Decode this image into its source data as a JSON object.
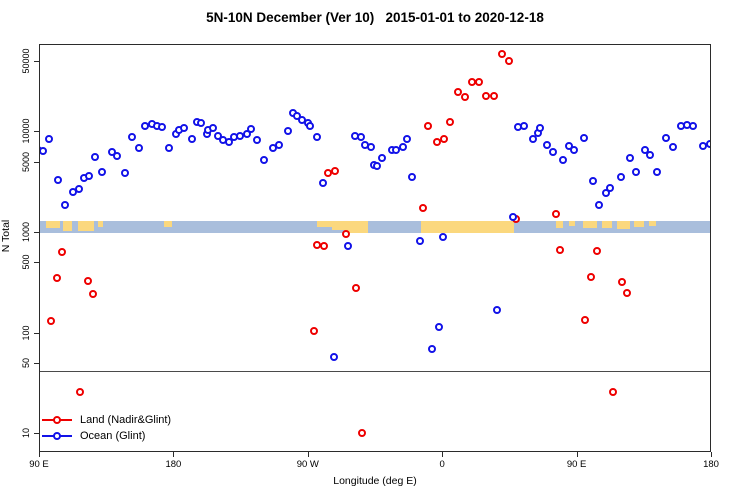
{
  "header": {
    "title": "5N-10N December (Ver 10)   2015-01-01 to 2020-12-18"
  },
  "axes": {
    "x": {
      "label": "Longitude (deg E)",
      "ticks": [
        {
          "coord": 90,
          "label": "90 E"
        },
        {
          "coord": 180,
          "label": "180"
        },
        {
          "coord": 270,
          "label": "90 W"
        },
        {
          "coord": 360,
          "label": "0"
        },
        {
          "coord": 450,
          "label": "90 E"
        },
        {
          "coord": 540,
          "label": "180"
        }
      ],
      "range_note": "axis spans 450 deg, longitudes wrap from 90E eastward to 180 twice"
    },
    "y": {
      "label": "N Total",
      "scale": "log10",
      "ticks": [
        "50000",
        "10000",
        "5000",
        "1000",
        "500",
        "100",
        "50",
        "10"
      ],
      "tick_values": [
        50000,
        10000,
        5000,
        1000,
        500,
        100,
        50,
        10
      ]
    }
  },
  "legend": {
    "items": [
      {
        "label": "Land (Nadir&Glint)",
        "color": "#EE0000"
      },
      {
        "label": "Ocean (Glint)",
        "color": "#1212E8"
      }
    ]
  },
  "map_strip": {
    "description": "land/ocean geography band drawn across plot near N=1000",
    "ocean_color": "#A9BEDC",
    "land_color": "#FBD87E",
    "n_range": [
      975,
      1290
    ],
    "land_patches": [
      {
        "from": 95,
        "to": 104,
        "h": 0.55
      },
      {
        "from": 106,
        "to": 112,
        "h": 0.8
      },
      {
        "from": 116,
        "to": 127,
        "h": 0.85
      },
      {
        "from": 129.5,
        "to": 133,
        "h": 0.5
      },
      {
        "from": 174,
        "to": 179,
        "h": 0.5
      },
      {
        "from": 276,
        "to": 286,
        "h": 0.5
      },
      {
        "from": 286,
        "to": 295,
        "h": 0.75
      },
      {
        "from": 295,
        "to": 310,
        "h": 1
      },
      {
        "from": 346,
        "to": 408,
        "h": 1
      },
      {
        "from": 436,
        "to": 441,
        "h": 0.6
      },
      {
        "from": 445,
        "to": 449,
        "h": 0.45
      },
      {
        "from": 454.5,
        "to": 464,
        "h": 0.6
      },
      {
        "from": 467,
        "to": 473.5,
        "h": 0.55
      },
      {
        "from": 477,
        "to": 485.5,
        "h": 0.65
      },
      {
        "from": 488.5,
        "to": 495,
        "h": 0.5
      },
      {
        "from": 498.5,
        "to": 503,
        "h": 0.4
      }
    ]
  },
  "threshold_line": {
    "n_value": 42
  },
  "chart_data": {
    "type": "scatter",
    "title": "5N-10N December (Ver 10)   2015-01-01 to 2020-12-18",
    "xlabel": "Longitude (deg E)",
    "ylabel": "N Total",
    "x_units": "degrees east, wrapped axis coordinate 90..540",
    "xlim": [
      90,
      540
    ],
    "ylim": [
      6.55,
      73500
    ],
    "y_scale": "log",
    "grid": false,
    "legend_position": "bottom-left",
    "marker": "open-circle",
    "series": [
      {
        "name": "Land (Nadir&Glint)",
        "color": "#EE0000",
        "points": [
          [
            97.8,
            132
          ],
          [
            102.2,
            352
          ],
          [
            105.1,
            640
          ],
          [
            117.3,
            26
          ],
          [
            122.9,
            326
          ],
          [
            126.2,
            242
          ],
          [
            274,
            104
          ],
          [
            276.2,
            750
          ],
          [
            280.7,
            730
          ],
          [
            283.5,
            3880
          ],
          [
            288.4,
            3990
          ],
          [
            295.8,
            950
          ],
          [
            302.2,
            276
          ],
          [
            306.2,
            10
          ],
          [
            346.9,
            1740
          ],
          [
            350.7,
            11300
          ],
          [
            356.7,
            7890
          ],
          [
            361.3,
            8380
          ],
          [
            365.1,
            12500
          ],
          [
            370.7,
            24700
          ],
          [
            375.1,
            22100
          ],
          [
            380.2,
            31100
          ],
          [
            384.7,
            31100
          ],
          [
            389.5,
            22600
          ],
          [
            394.7,
            22600
          ],
          [
            400.2,
            58200
          ],
          [
            404.5,
            50300
          ],
          [
            409.5,
            1340
          ],
          [
            436,
            1520
          ],
          [
            439.1,
            657
          ],
          [
            455.5,
            135
          ],
          [
            459.5,
            355
          ],
          [
            463.4,
            650
          ],
          [
            474.7,
            26
          ],
          [
            480.7,
            321
          ],
          [
            483.5,
            250
          ]
        ]
      },
      {
        "name": "Ocean (Glint)",
        "color": "#1212E8",
        "points": [
          [
            89,
            6500
          ],
          [
            93,
            6400
          ],
          [
            97,
            8400
          ],
          [
            103,
            3300
          ],
          [
            107.5,
            1860
          ],
          [
            113,
            2520
          ],
          [
            117,
            2700
          ],
          [
            120,
            3400
          ],
          [
            123.5,
            3630
          ],
          [
            127.3,
            5520
          ],
          [
            132,
            3970
          ],
          [
            139,
            6290
          ],
          [
            142.5,
            5730
          ],
          [
            147.3,
            3830
          ],
          [
            152.5,
            8740
          ],
          [
            157,
            6810
          ],
          [
            160.7,
            11300
          ],
          [
            165.5,
            11900
          ],
          [
            169.3,
            11300
          ],
          [
            172.2,
            11100
          ],
          [
            177,
            6900
          ],
          [
            181.5,
            9300
          ],
          [
            183.6,
            10300
          ],
          [
            187.3,
            10700
          ],
          [
            192.2,
            8400
          ],
          [
            195.8,
            12500
          ],
          [
            198.5,
            12200
          ],
          [
            202.2,
            9300
          ],
          [
            203,
            10300
          ],
          [
            206.7,
            10700
          ],
          [
            210.2,
            9000
          ],
          [
            213.3,
            8200
          ],
          [
            217,
            7900
          ],
          [
            220.7,
            8870
          ],
          [
            224.4,
            9000
          ],
          [
            229,
            9300
          ],
          [
            231.8,
            10500
          ],
          [
            235.8,
            8200
          ],
          [
            240.7,
            5200
          ],
          [
            247,
            6870
          ],
          [
            251,
            7300
          ],
          [
            256.7,
            10000
          ],
          [
            260.2,
            15100
          ],
          [
            263,
            14200
          ],
          [
            266.2,
            12900
          ],
          [
            270,
            12000
          ],
          [
            271.3,
            11300
          ],
          [
            276.2,
            8870
          ],
          [
            280.2,
            3100
          ],
          [
            287.3,
            57
          ],
          [
            296.7,
            730
          ],
          [
            301.8,
            9000
          ],
          [
            305.8,
            8870
          ],
          [
            308.5,
            7300
          ],
          [
            312.2,
            7050
          ],
          [
            314,
            4630
          ],
          [
            316.2,
            4520
          ],
          [
            319.5,
            5390
          ],
          [
            326.2,
            6520
          ],
          [
            329.1,
            6520
          ],
          [
            333.5,
            6940
          ],
          [
            336.2,
            8380
          ],
          [
            340,
            3500
          ],
          [
            345.1,
            820
          ],
          [
            353.5,
            69
          ],
          [
            357.8,
            113
          ],
          [
            360.7,
            890
          ],
          [
            396.9,
            170
          ],
          [
            407.3,
            1400
          ],
          [
            410.7,
            11000
          ],
          [
            414.7,
            11300
          ],
          [
            420.7,
            8380
          ],
          [
            424.4,
            9700
          ],
          [
            425.8,
            10700
          ],
          [
            430.2,
            7300
          ],
          [
            434.4,
            6180
          ],
          [
            440.7,
            5190
          ],
          [
            445.1,
            7220
          ],
          [
            448.4,
            6520
          ],
          [
            455.1,
            8640
          ],
          [
            460.7,
            3210
          ],
          [
            465.1,
            1850
          ],
          [
            469.5,
            2420
          ],
          [
            472.4,
            2760
          ],
          [
            479.5,
            3550
          ],
          [
            485.8,
            5390
          ],
          [
            490,
            3950
          ],
          [
            495.6,
            6520
          ],
          [
            499.1,
            5870
          ],
          [
            504,
            3930
          ],
          [
            510.2,
            8520
          ],
          [
            514.7,
            7050
          ],
          [
            519.6,
            11400
          ],
          [
            524,
            11600
          ],
          [
            528,
            11400
          ],
          [
            534.4,
            7200
          ],
          [
            539,
            7500
          ]
        ]
      }
    ]
  }
}
